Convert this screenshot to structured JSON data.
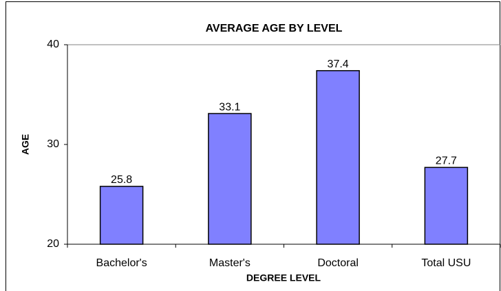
{
  "chart_data": {
    "type": "bar",
    "title": "AVERAGE AGE BY LEVEL",
    "x_label": "DEGREE LEVEL",
    "y_label": "AGE",
    "categories": [
      "Bachelor's",
      "Master's",
      "Doctoral",
      "Total USU"
    ],
    "values": [
      25.8,
      33.1,
      37.4,
      27.7
    ],
    "color": "#8080ff",
    "ylim": [
      20,
      40
    ],
    "yticks": [
      20,
      30,
      40
    ],
    "grid": false
  }
}
